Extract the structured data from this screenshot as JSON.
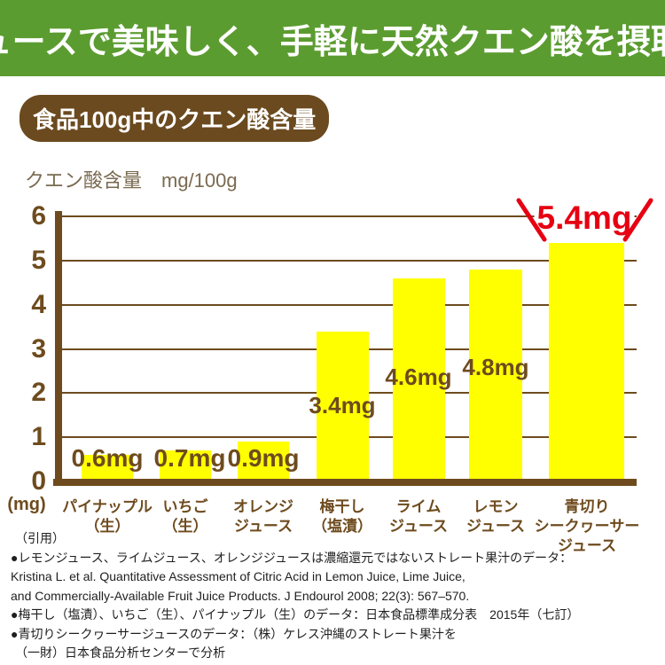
{
  "header": {
    "title": "ジュースで美味しく、手軽に天然クエン酸を摂取！"
  },
  "section": {
    "badge": "食品100g中のクエン酸含量"
  },
  "chart": {
    "axis_title": "クエン酸含量　mg/100g",
    "y_unit_label": "(mg)"
  },
  "chart_data": {
    "type": "bar",
    "title": "食品100g中のクエン酸含量",
    "ylabel": "クエン酸含量 mg/100g",
    "xlabel": "",
    "ylim": [
      0,
      6
    ],
    "yticks": [
      0,
      1,
      2,
      3,
      4,
      5,
      6
    ],
    "grid": true,
    "bar_color": "#ffff00",
    "highlight_index": 6,
    "highlight_color": "#e60012",
    "categories": [
      [
        "パイナップル",
        "（生）"
      ],
      [
        "いちご",
        "（生）"
      ],
      [
        "オレンジ",
        "ジュース"
      ],
      [
        "梅干し",
        "（塩漬）"
      ],
      [
        "ライム",
        "ジュース"
      ],
      [
        "レモン",
        "ジュース"
      ],
      [
        "青切り",
        "シークヮーサー",
        "ジュース"
      ]
    ],
    "values": [
      0.6,
      0.7,
      0.9,
      3.4,
      4.6,
      4.8,
      5.4
    ],
    "value_labels": [
      "0.6mg",
      "0.7mg",
      "0.9mg",
      "3.4mg",
      "4.6mg",
      "4.8mg",
      "5.4mg"
    ]
  },
  "notes": {
    "lines": [
      "（引用）",
      "●レモンジュース、ライムジュース、オレンジジュースは濃縮還元ではないストレート果汁のデータ：",
      "Kristina L. et al. Quantitative Assessment of Citric Acid in Lemon Juice, Lime Juice,",
      "and Commercially-Available Fruit Juice Products.  J Endourol 2008; 22(3): 567–570.",
      "●梅干し（塩漬）、いちご（生）、パイナップル（生）のデータ：日本食品標準成分表　2015年（七訂）",
      "●青切りシークヮーサージュースのデータ：（株）ケレス沖縄のストレート果汁を",
      "（一財）日本食品分析センターで分析"
    ]
  },
  "colors": {
    "header_green": "#5b9c30",
    "badge_brown": "#6b4a1f",
    "axis_brown": "#6e4b1e",
    "bar_yellow": "#ffff00",
    "highlight_red": "#e60012"
  }
}
